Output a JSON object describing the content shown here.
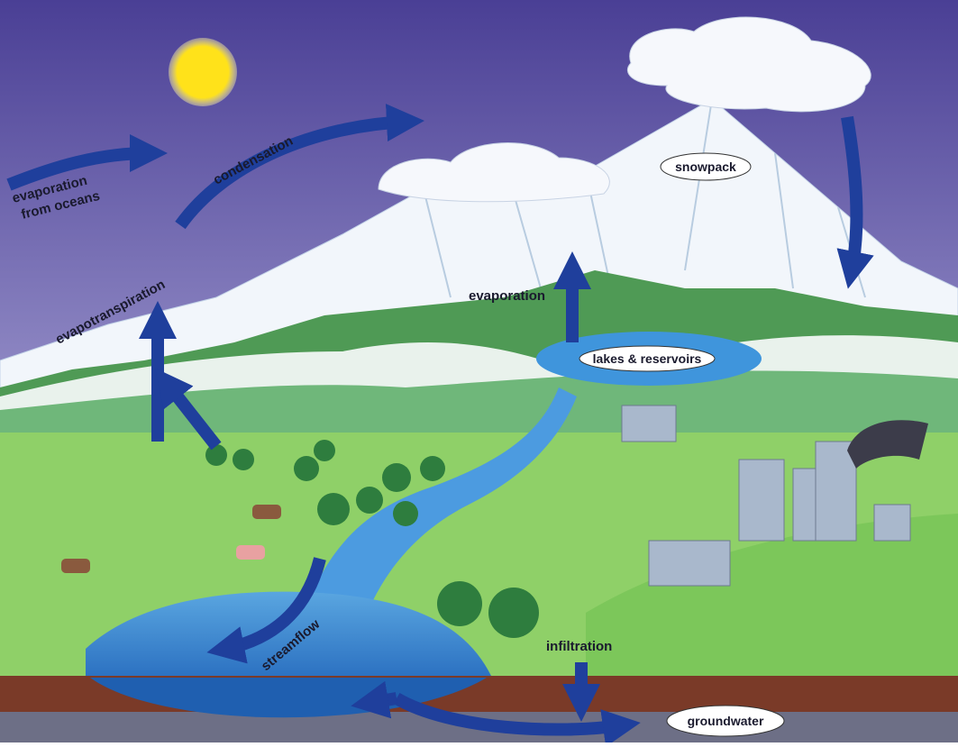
{
  "labels": {
    "ocean_evaporation": [
      "evaporation",
      "from oceans"
    ],
    "condensation": "condensation",
    "evapotranspiration": "evapotranspiration",
    "evaporation": "evaporation",
    "snowpack": "snowpack",
    "lakes": "lakes & reservoirs",
    "streamflow": "streamflow",
    "infiltration": "infiltration",
    "groundwater": "groundwater"
  }
}
